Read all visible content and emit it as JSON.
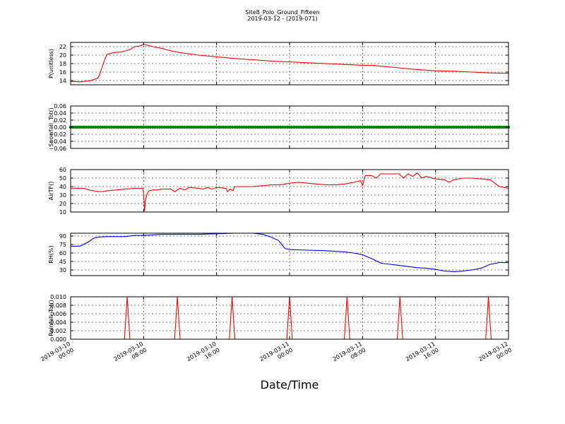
{
  "title": "Site8_Polo_Ground_Fifteen",
  "subtitle": "2019-03-12 - (2019-071)",
  "xlabel": "Date/Time",
  "x_ticks": [
    {
      "line1": "2019-03-10",
      "line2": "00:00",
      "hours": 0
    },
    {
      "line1": "2019-03-10",
      "line2": "08:00",
      "hours": 8
    },
    {
      "line1": "2019-03-10",
      "line2": "16:00",
      "hours": 16
    },
    {
      "line1": "2019-03-11",
      "line2": "00:00",
      "hours": 24
    },
    {
      "line1": "2019-03-11",
      "line2": "08:00",
      "hours": 32
    },
    {
      "line1": "2019-03-11",
      "line2": "16:00",
      "hours": 40
    },
    {
      "line1": "2019-03-12",
      "line2": "00:00",
      "hours": 48
    }
  ],
  "chart_data": [
    {
      "type": "line",
      "ylabel": "P(unitless)",
      "ylim": [
        13,
        23
      ],
      "yticks": [
        14,
        16,
        18,
        20,
        22
      ],
      "ytick_labels": [
        "14",
        "16",
        "18",
        "20",
        "22"
      ],
      "color": "#ff0000",
      "grid": true,
      "x_hours": [
        0,
        1,
        2,
        2.5,
        3,
        3.2,
        3.5,
        3.8,
        4,
        5,
        5.5,
        6,
        6.5,
        7,
        7.5,
        8,
        8.5,
        9,
        10,
        11,
        12,
        14,
        16,
        18,
        20,
        22,
        24,
        26,
        28,
        30,
        32,
        33,
        34,
        36,
        38,
        40,
        42,
        44,
        46,
        48
      ],
      "values": [
        13.8,
        13.7,
        13.9,
        14.2,
        14.6,
        15.5,
        17.5,
        19.3,
        20.2,
        20.7,
        20.7,
        21.0,
        21.3,
        22.0,
        22.1,
        22.5,
        22.3,
        22.0,
        21.6,
        21.0,
        20.6,
        20.0,
        19.6,
        19.2,
        18.9,
        18.6,
        18.4,
        18.2,
        18.0,
        17.8,
        17.6,
        17.6,
        17.4,
        17.0,
        16.6,
        16.3,
        16.2,
        16.0,
        15.8,
        15.7
      ]
    },
    {
      "type": "scatter",
      "ylabel": "Snowfall_Tot()",
      "ylim": [
        -0.06,
        0.06
      ],
      "yticks": [
        -0.06,
        -0.04,
        -0.02,
        0.0,
        0.02,
        0.04,
        0.06
      ],
      "ytick_labels": [
        "−0.06",
        "−0.04",
        "−0.02",
        "0.00",
        "0.02",
        "0.04",
        "0.06"
      ],
      "color": "#008000",
      "grid": true,
      "x_hours": [
        0,
        48
      ],
      "values": [
        0.0,
        0.0
      ]
    },
    {
      "type": "line",
      "ylabel": "AirTF()",
      "ylim": [
        10,
        60
      ],
      "yticks": [
        10,
        20,
        30,
        40,
        50,
        60
      ],
      "ytick_labels": [
        "10",
        "20",
        "30",
        "40",
        "50",
        "60"
      ],
      "color": "#ff0000",
      "grid": true,
      "x_hours": [
        0,
        1.5,
        2,
        2.5,
        3,
        3.5,
        4,
        5,
        6,
        7,
        7.9,
        8.0,
        8.1,
        8.2,
        8.4,
        8.6,
        9,
        9.5,
        10,
        11,
        11.4,
        12,
        12.5,
        13,
        14,
        14.5,
        15,
        15.5,
        16,
        17,
        17.2,
        17.5,
        17.8,
        18,
        19,
        20,
        21,
        22,
        23,
        24,
        25,
        26,
        27,
        28,
        29,
        30,
        31,
        31.8,
        32.0,
        32.3,
        33,
        33.5,
        34,
        35,
        36,
        36.5,
        37,
        37.5,
        38,
        38.5,
        39,
        40,
        41,
        41.5,
        42,
        43,
        44,
        45,
        46,
        47,
        48
      ],
      "values": [
        38,
        38,
        36,
        35,
        34,
        34,
        35,
        36,
        37,
        38,
        38,
        33,
        11,
        24,
        32,
        35,
        36,
        36,
        37,
        37,
        34,
        38,
        36,
        39,
        38,
        37,
        39,
        37,
        39,
        38,
        34,
        37,
        35,
        40,
        40,
        40,
        41,
        42,
        42,
        44,
        45,
        44,
        43,
        42,
        42,
        43,
        45,
        47,
        41,
        53,
        53,
        50,
        55,
        55,
        55,
        50,
        55,
        52,
        56,
        50,
        52,
        49,
        48,
        45,
        48,
        50,
        50,
        49,
        48,
        40,
        38
      ]
    },
    {
      "type": "line",
      "ylabel": "RH(%)",
      "ylim": [
        20,
        95
      ],
      "yticks": [
        30,
        45,
        60,
        75,
        90
      ],
      "ytick_labels": [
        "30",
        "45",
        "60",
        "75",
        "90"
      ],
      "color": "#0000ff",
      "grid": true,
      "x_hours": [
        0,
        1,
        1.5,
        2,
        2.5,
        3,
        4,
        5,
        6,
        7,
        8,
        9,
        10,
        12,
        14,
        16,
        18,
        20,
        21,
        22,
        22.8,
        23.5,
        24,
        26,
        28,
        30,
        31,
        32,
        33,
        34,
        35,
        36,
        37,
        38,
        39,
        40,
        41,
        42,
        43,
        44,
        45,
        46,
        47,
        48
      ],
      "values": [
        72,
        72,
        76,
        80,
        86,
        88,
        89,
        89,
        89,
        91,
        91,
        92,
        93,
        93,
        93,
        94,
        95,
        95,
        93,
        88,
        82,
        68,
        66,
        65,
        64,
        62,
        60,
        57,
        50,
        42,
        40,
        38,
        36,
        34,
        33,
        31,
        28,
        27,
        28,
        30,
        33,
        40,
        43,
        43
      ]
    },
    {
      "type": "line",
      "ylabel": "Rainfall_Tot()",
      "ylim": [
        0.0,
        0.01
      ],
      "yticks": [
        0.0,
        0.002,
        0.004,
        0.006,
        0.008,
        0.01
      ],
      "ytick_labels": [
        "0.000",
        "0.002",
        "0.004",
        "0.006",
        "0.008",
        "0.010"
      ],
      "color": "#ff0000",
      "grid": true,
      "x_hours": [
        0,
        5.9,
        6.2,
        6.5,
        11.4,
        11.7,
        12.0,
        17.4,
        17.7,
        18.0,
        23.7,
        24.0,
        24.3,
        30.0,
        30.3,
        30.6,
        35.8,
        36.1,
        36.4,
        45.5,
        45.8,
        46.1,
        48
      ],
      "values": [
        0,
        0,
        0.01,
        0,
        0,
        0.01,
        0,
        0,
        0.01,
        0,
        0,
        0.01,
        0,
        0,
        0.01,
        0,
        0,
        0.01,
        0,
        0,
        0.01,
        0,
        0
      ]
    }
  ]
}
